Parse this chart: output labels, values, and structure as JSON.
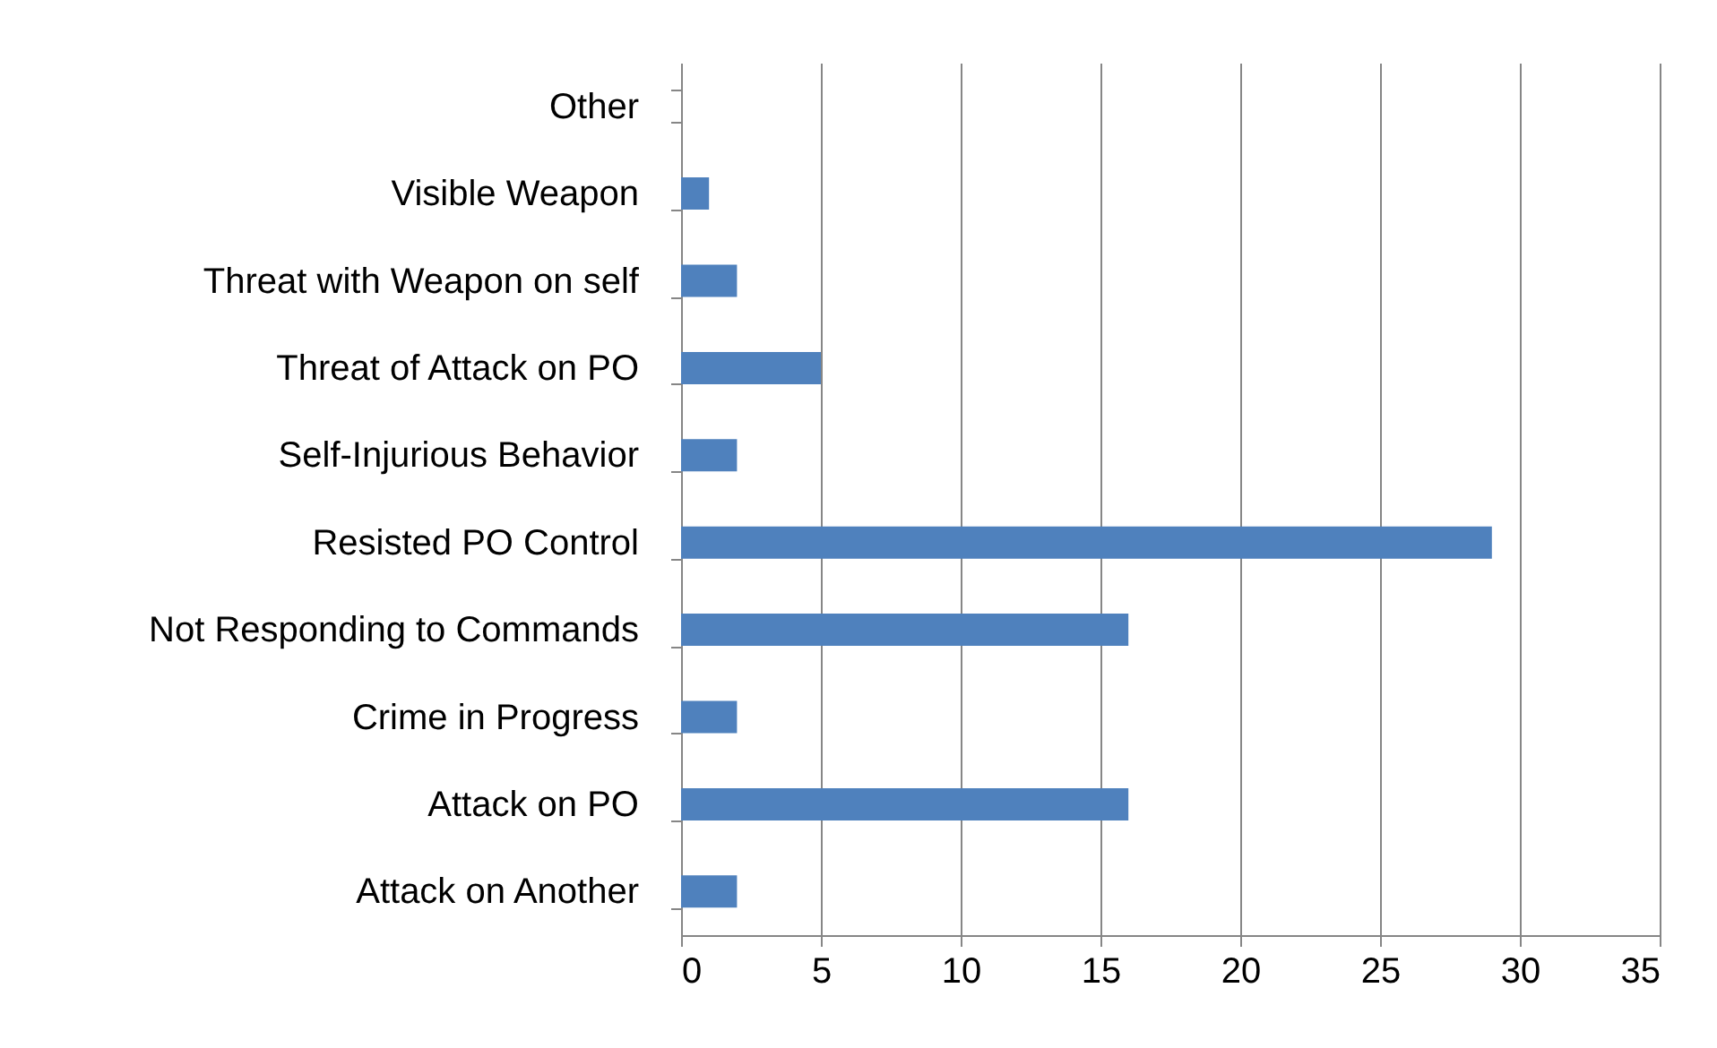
{
  "chart_data": {
    "type": "bar",
    "orientation": "horizontal",
    "categories": [
      "Other",
      "Visible Weapon",
      "Threat with Weapon on self",
      "Threat of Attack on PO",
      "Self-Injurious Behavior",
      "Resisted PO Control",
      "Not Responding to Commands",
      "Crime in Progress",
      "Attack on PO",
      "Attack on Another"
    ],
    "values": [
      0,
      1,
      2,
      5,
      2,
      29,
      16,
      2,
      16,
      2
    ],
    "color": "#4f81bd",
    "xlim": [
      0,
      35
    ],
    "xticks": [
      0,
      5,
      10,
      15,
      20,
      25,
      30,
      35
    ],
    "grid": "x"
  }
}
